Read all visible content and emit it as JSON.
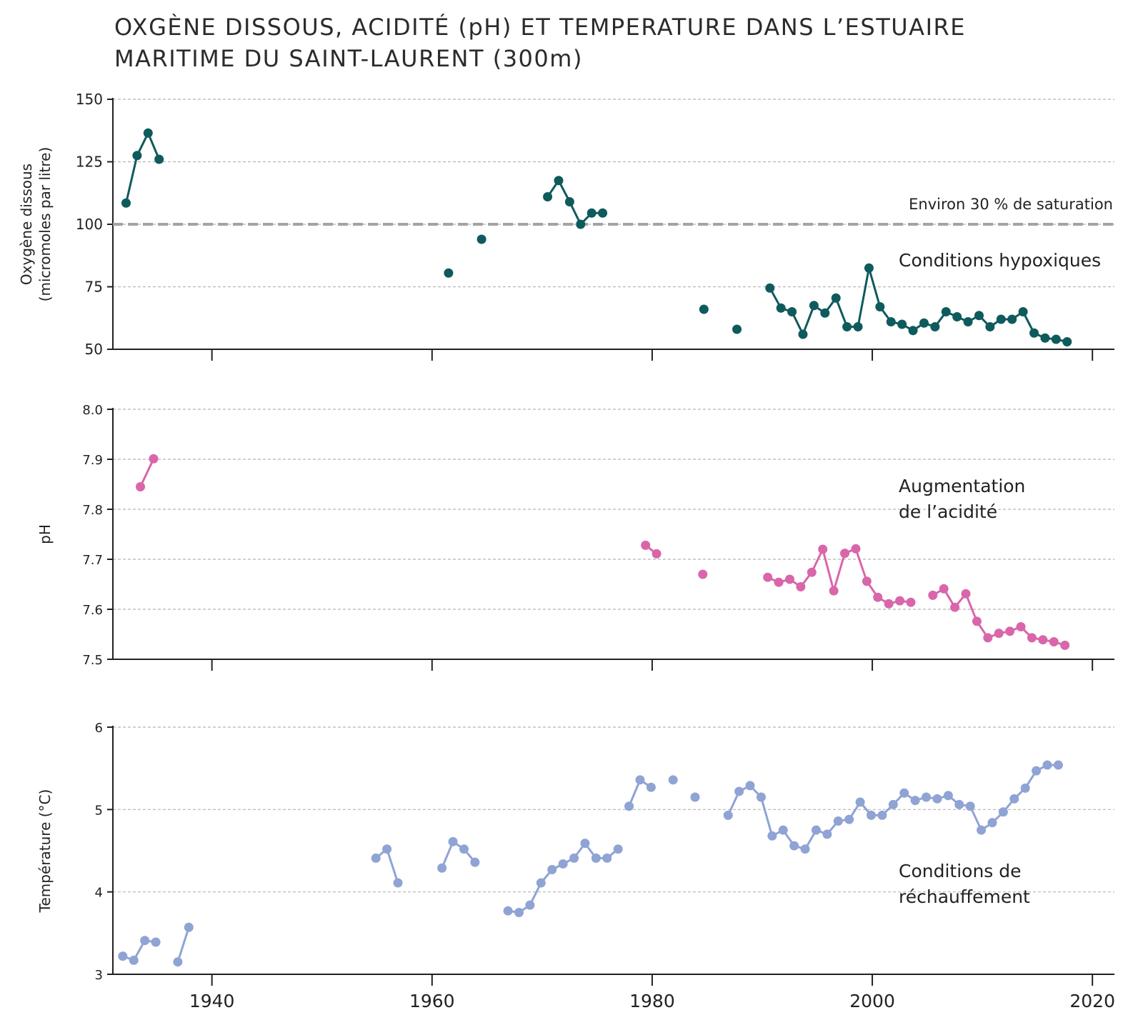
{
  "title": {
    "line1": "OXGÈNE DISSOUS, ACIDITÉ (pH) ET TEMPERATURE DANS L’ESTUAIRE",
    "line2": "MARITIME DU SAINT-LAURENT (300m)"
  },
  "x_ticks": [
    1940,
    1960,
    1980,
    2000,
    2020
  ],
  "colors": {
    "oxygen": "#0f5a5c",
    "ph": "#d966aa",
    "temperature": "#8fa3d4",
    "reference": "#a3a3a3",
    "grid": "#b5b5b5"
  },
  "chart_data": [
    {
      "type": "line",
      "ylabel": [
        "Oxygène dissous",
        "(micromoles par litre)"
      ],
      "ylim": [
        50,
        150
      ],
      "xlim": [
        1931,
        2022
      ],
      "yticks": [
        "50",
        "75",
        "100",
        "125",
        "150"
      ],
      "grid": true,
      "reference_line": {
        "y": 100,
        "label": "Environ 30 % de saturation"
      },
      "annotations": [
        "Conditions hypoxiques"
      ],
      "segments": [
        [
          [
            1932.2,
            108.5
          ],
          [
            1933.2,
            127.5
          ],
          [
            1934.2,
            136.5
          ],
          [
            1935.2,
            126
          ]
        ],
        [
          [
            1961.5,
            80.5
          ]
        ],
        [
          [
            1964.5,
            94
          ]
        ],
        [
          [
            1970.5,
            111
          ],
          [
            1971.5,
            117.5
          ],
          [
            1972.5,
            109
          ],
          [
            1973.5,
            100
          ],
          [
            1974.5,
            104.5
          ],
          [
            1975.5,
            104.5
          ]
        ],
        [
          [
            1984.7,
            66
          ]
        ],
        [
          [
            1987.7,
            58
          ]
        ],
        [
          [
            1990.7,
            74.5
          ],
          [
            1991.7,
            66.5
          ],
          [
            1992.7,
            65
          ],
          [
            1993.7,
            56
          ],
          [
            1994.7,
            67.5
          ],
          [
            1995.7,
            64.5
          ],
          [
            1996.7,
            70.5
          ],
          [
            1997.7,
            59
          ],
          [
            1998.7,
            59
          ],
          [
            1999.7,
            82.5
          ],
          [
            2000.7,
            67
          ],
          [
            2001.7,
            61
          ],
          [
            2002.7,
            60
          ],
          [
            2003.7,
            57.5
          ],
          [
            2004.7,
            60.5
          ],
          [
            2005.7,
            59
          ],
          [
            2006.7,
            65
          ],
          [
            2007.7,
            63
          ],
          [
            2008.7,
            61
          ],
          [
            2009.7,
            63.5
          ],
          [
            2010.7,
            59
          ],
          [
            2011.7,
            62
          ],
          [
            2012.7,
            62
          ],
          [
            2013.7,
            65
          ],
          [
            2014.7,
            56.5
          ],
          [
            2015.7,
            54.5
          ],
          [
            2016.7,
            54
          ],
          [
            2017.7,
            53
          ]
        ]
      ]
    },
    {
      "type": "line",
      "ylabel": [
        "pH"
      ],
      "ylim": [
        7.5,
        8.0
      ],
      "xlim": [
        1931,
        2022
      ],
      "yticks": [
        "7.5",
        "7.6",
        "7.7",
        "7.8",
        "7.9",
        "8.0"
      ],
      "grid": true,
      "annotations": [
        "Augmentation",
        "de l’acidité"
      ],
      "segments": [
        [
          [
            1933.5,
            7.845
          ],
          [
            1934.7,
            7.901
          ]
        ],
        [
          [
            1979.4,
            7.728
          ],
          [
            1980.4,
            7.711
          ]
        ],
        [
          [
            1984.6,
            7.67
          ]
        ],
        [
          [
            1990.5,
            7.664
          ],
          [
            1991.5,
            7.654
          ],
          [
            1992.5,
            7.66
          ],
          [
            1993.5,
            7.645
          ],
          [
            1994.5,
            7.674
          ],
          [
            1995.5,
            7.72
          ],
          [
            1996.5,
            7.637
          ],
          [
            1997.5,
            7.712
          ],
          [
            1998.5,
            7.721
          ],
          [
            1999.5,
            7.656
          ],
          [
            2000.5,
            7.624
          ],
          [
            2001.5,
            7.611
          ],
          [
            2002.5,
            7.617
          ],
          [
            2003.5,
            7.614
          ]
        ],
        [
          [
            2005.5,
            7.628
          ],
          [
            2006.5,
            7.641
          ],
          [
            2007.5,
            7.604
          ],
          [
            2008.5,
            7.631
          ],
          [
            2009.5,
            7.576
          ],
          [
            2010.5,
            7.543
          ],
          [
            2011.5,
            7.552
          ],
          [
            2012.5,
            7.556
          ],
          [
            2013.5,
            7.565
          ],
          [
            2014.5,
            7.543
          ],
          [
            2015.5,
            7.539
          ],
          [
            2016.5,
            7.535
          ],
          [
            2017.5,
            7.528
          ]
        ]
      ]
    },
    {
      "type": "line",
      "ylabel": [
        "Température (°C)"
      ],
      "ylim": [
        3,
        6
      ],
      "xlim": [
        1931,
        2022
      ],
      "yticks": [
        "3",
        "4",
        "5",
        "6"
      ],
      "grid": true,
      "annotations": [
        "Conditions de",
        "réchauffement"
      ],
      "segments": [
        [
          [
            1931.9,
            3.22
          ],
          [
            1932.9,
            3.17
          ],
          [
            1933.9,
            3.41
          ],
          [
            1934.9,
            3.39
          ]
        ],
        [
          [
            1936.9,
            3.15
          ],
          [
            1937.9,
            3.57
          ]
        ],
        [
          [
            1954.9,
            4.41
          ],
          [
            1955.9,
            4.52
          ],
          [
            1956.9,
            4.11
          ]
        ],
        [
          [
            1960.9,
            4.29
          ],
          [
            1961.9,
            4.61
          ],
          [
            1962.9,
            4.52
          ],
          [
            1963.9,
            4.36
          ]
        ],
        [
          [
            1966.9,
            3.77
          ],
          [
            1967.9,
            3.75
          ],
          [
            1968.9,
            3.84
          ],
          [
            1969.9,
            4.11
          ],
          [
            1970.9,
            4.27
          ],
          [
            1971.9,
            4.34
          ],
          [
            1972.9,
            4.41
          ],
          [
            1973.9,
            4.59
          ],
          [
            1974.9,
            4.41
          ],
          [
            1975.9,
            4.41
          ],
          [
            1976.9,
            4.52
          ]
        ],
        [
          [
            1977.9,
            5.04
          ],
          [
            1978.9,
            5.36
          ],
          [
            1979.9,
            5.27
          ]
        ],
        [
          [
            1981.9,
            5.36
          ]
        ],
        [
          [
            1983.9,
            5.15
          ]
        ],
        [
          [
            1986.9,
            4.93
          ],
          [
            1987.9,
            5.22
          ],
          [
            1988.9,
            5.29
          ],
          [
            1989.9,
            5.15
          ],
          [
            1990.9,
            4.68
          ],
          [
            1991.9,
            4.75
          ],
          [
            1992.9,
            4.56
          ],
          [
            1993.9,
            4.52
          ],
          [
            1994.9,
            4.75
          ],
          [
            1995.9,
            4.7
          ],
          [
            1996.9,
            4.86
          ],
          [
            1997.9,
            4.88
          ],
          [
            1998.9,
            5.09
          ],
          [
            1999.9,
            4.93
          ],
          [
            2000.9,
            4.93
          ],
          [
            2001.9,
            5.06
          ],
          [
            2002.9,
            5.2
          ],
          [
            2003.9,
            5.11
          ],
          [
            2004.9,
            5.15
          ],
          [
            2005.9,
            5.13
          ],
          [
            2006.9,
            5.17
          ],
          [
            2007.9,
            5.06
          ],
          [
            2008.9,
            5.04
          ],
          [
            2009.9,
            4.75
          ],
          [
            2010.9,
            4.84
          ],
          [
            2011.9,
            4.97
          ],
          [
            2012.9,
            5.13
          ],
          [
            2013.9,
            5.26
          ],
          [
            2014.9,
            5.47
          ],
          [
            2015.9,
            5.54
          ],
          [
            2016.9,
            5.54
          ]
        ]
      ]
    }
  ]
}
